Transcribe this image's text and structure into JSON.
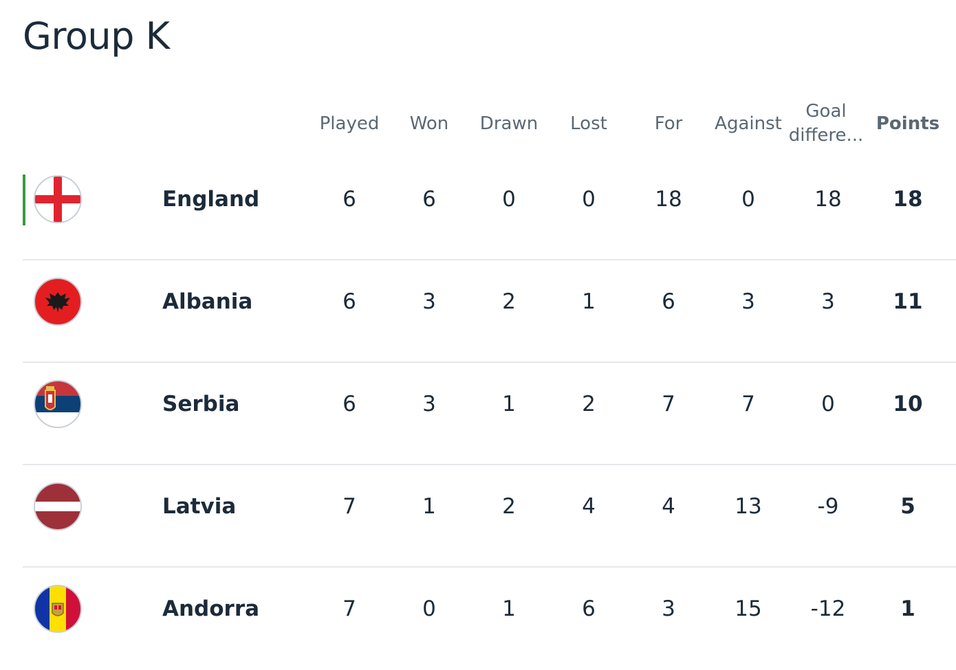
{
  "title": "Group K",
  "columns": {
    "played": "Played",
    "won": "Won",
    "drawn": "Drawn",
    "lost": "Lost",
    "for": "For",
    "against": "Against",
    "goal_difference": "Goal differe...",
    "points": "Points"
  },
  "colors": {
    "leader_bar": "#3a9b3a",
    "divider": "#e6e9ec",
    "header_text": "#5a6874",
    "body_text": "#1c2b3a"
  },
  "rows": [
    {
      "team": "England",
      "flag": "england-flag-icon",
      "played": "6",
      "won": "6",
      "drawn": "0",
      "lost": "0",
      "for": "18",
      "against": "0",
      "gd": "18",
      "points": "18"
    },
    {
      "team": "Albania",
      "flag": "albania-flag-icon",
      "played": "6",
      "won": "3",
      "drawn": "2",
      "lost": "1",
      "for": "6",
      "against": "3",
      "gd": "3",
      "points": "11"
    },
    {
      "team": "Serbia",
      "flag": "serbia-flag-icon",
      "played": "6",
      "won": "3",
      "drawn": "1",
      "lost": "2",
      "for": "7",
      "against": "7",
      "gd": "0",
      "points": "10"
    },
    {
      "team": "Latvia",
      "flag": "latvia-flag-icon",
      "played": "7",
      "won": "1",
      "drawn": "2",
      "lost": "4",
      "for": "4",
      "against": "13",
      "gd": "-9",
      "points": "5"
    },
    {
      "team": "Andorra",
      "flag": "andorra-flag-icon",
      "played": "7",
      "won": "0",
      "drawn": "1",
      "lost": "6",
      "for": "3",
      "against": "15",
      "gd": "-12",
      "points": "1"
    }
  ]
}
